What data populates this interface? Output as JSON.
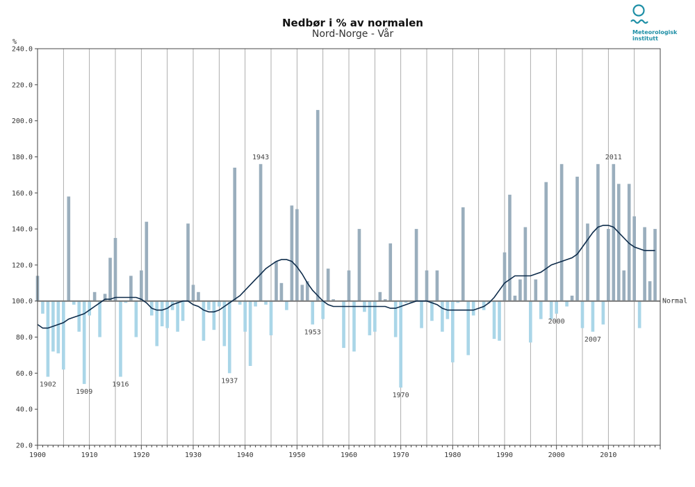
{
  "header": {
    "title": "Nedbør i % av normalen",
    "subtitle": "Nord-Norge - Vår"
  },
  "logo": {
    "line1": "Meteorologisk",
    "line2": "institutt",
    "color": "#1e8fa6"
  },
  "chart_data": {
    "type": "bar",
    "title": "Nedbør i % av normalen",
    "subtitle": "Nord-Norge - Vår",
    "ylabel": "%",
    "xlabel": "",
    "ylim": [
      20,
      240
    ],
    "xlim": [
      1900,
      2020
    ],
    "baseline": 100,
    "baseline_label": "Normal",
    "grid": true,
    "colors": {
      "above": "#9aaebd",
      "below": "#aad6e8",
      "smooth": "#0d2b4a",
      "baseline": "#777777",
      "grid": "#999999"
    },
    "yticks": [
      "20.0",
      "40.0",
      "60.0",
      "80.0",
      "100.0",
      "120.0",
      "140.0",
      "160.0",
      "180.0",
      "200.0",
      "220.0",
      "240.0"
    ],
    "xticks": [
      "1900",
      "1910",
      "1920",
      "1930",
      "1940",
      "1950",
      "1960",
      "1970",
      "1980",
      "1990",
      "2000",
      "2010"
    ],
    "years": [
      1900,
      1901,
      1902,
      1903,
      1904,
      1905,
      1906,
      1907,
      1908,
      1909,
      1910,
      1911,
      1912,
      1913,
      1914,
      1915,
      1916,
      1917,
      1918,
      1919,
      1920,
      1921,
      1922,
      1923,
      1924,
      1925,
      1926,
      1927,
      1928,
      1929,
      1930,
      1931,
      1932,
      1933,
      1934,
      1935,
      1936,
      1937,
      1938,
      1939,
      1940,
      1941,
      1942,
      1943,
      1944,
      1945,
      1946,
      1947,
      1948,
      1949,
      1950,
      1951,
      1952,
      1953,
      1954,
      1955,
      1956,
      1957,
      1958,
      1959,
      1960,
      1961,
      1962,
      1963,
      1964,
      1965,
      1966,
      1967,
      1968,
      1969,
      1970,
      1971,
      1972,
      1973,
      1974,
      1975,
      1976,
      1977,
      1978,
      1979,
      1980,
      1981,
      1982,
      1983,
      1984,
      1985,
      1986,
      1987,
      1988,
      1989,
      1990,
      1991,
      1992,
      1993,
      1994,
      1995,
      1996,
      1997,
      1998,
      1999,
      2000,
      2001,
      2002,
      2003,
      2004,
      2005,
      2006,
      2007,
      2008,
      2009,
      2010,
      2011,
      2012,
      2013,
      2014,
      2015,
      2016,
      2017,
      2018,
      2019
    ],
    "values": [
      114,
      93,
      58,
      72,
      71,
      62,
      158,
      98,
      83,
      54,
      92,
      105,
      80,
      104,
      124,
      135,
      58,
      99,
      114,
      80,
      117,
      144,
      92,
      75,
      86,
      85,
      95,
      83,
      89,
      143,
      109,
      105,
      78,
      95,
      84,
      97,
      75,
      60,
      174,
      98,
      83,
      64,
      97,
      176,
      98,
      81,
      122,
      110,
      95,
      153,
      151,
      109,
      111,
      87,
      206,
      90,
      118,
      101,
      100,
      74,
      117,
      72,
      140,
      94,
      81,
      83,
      105,
      101,
      132,
      80,
      52,
      99,
      99,
      140,
      85,
      117,
      89,
      117,
      83,
      90,
      66,
      99,
      152,
      70,
      92,
      100,
      95,
      99,
      79,
      78,
      127,
      159,
      103,
      112,
      141,
      77,
      112,
      90,
      166,
      90,
      93,
      176,
      97,
      103,
      169,
      85,
      143,
      83,
      176,
      87,
      140,
      176,
      165,
      117,
      165,
      147,
      85,
      141,
      111,
      140
    ],
    "smooth": [
      87,
      85,
      85,
      86,
      87,
      88,
      90,
      91,
      92,
      93,
      95,
      97,
      99,
      101,
      101,
      102,
      102,
      102,
      102,
      102,
      101,
      99,
      96,
      95,
      95,
      96,
      98,
      99,
      100,
      100,
      98,
      97,
      95,
      94,
      94,
      95,
      97,
      99,
      101,
      103,
      106,
      109,
      112,
      115,
      118,
      120,
      122,
      123,
      123,
      122,
      119,
      115,
      110,
      106,
      103,
      100,
      98,
      97,
      97,
      97,
      97,
      97,
      97,
      97,
      97,
      97,
      97,
      97,
      96,
      96,
      97,
      98,
      99,
      100,
      100,
      100,
      99,
      98,
      96,
      95,
      95,
      95,
      95,
      95,
      95,
      96,
      97,
      99,
      102,
      106,
      110,
      112,
      114,
      114,
      114,
      114,
      115,
      116,
      118,
      120,
      121,
      122,
      123,
      124,
      126,
      130,
      134,
      138,
      141,
      142,
      142,
      141,
      138,
      135,
      132,
      130,
      129,
      128,
      128,
      128
    ],
    "annotations": [
      {
        "year": 1902,
        "label": "1902"
      },
      {
        "year": 1909,
        "label": "1909"
      },
      {
        "year": 1916,
        "label": "1916"
      },
      {
        "year": 1937,
        "label": "1937"
      },
      {
        "year": 1943,
        "label": "1943"
      },
      {
        "year": 1953,
        "label": "1953"
      },
      {
        "year": 1970,
        "label": "1970"
      },
      {
        "year": 2000,
        "label": "2000"
      },
      {
        "year": 2007,
        "label": "2007"
      },
      {
        "year": 2011,
        "label": "2011"
      }
    ]
  }
}
